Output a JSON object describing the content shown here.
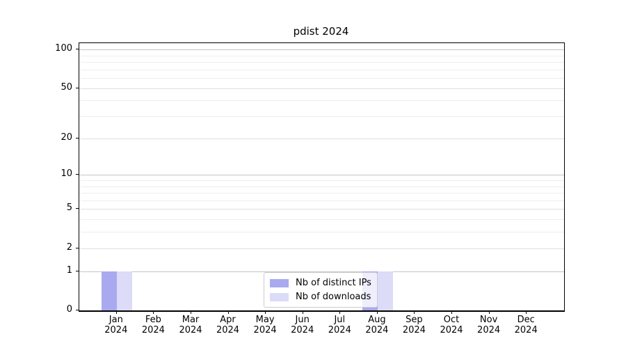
{
  "chart_data": {
    "type": "bar",
    "title": "pdist 2024",
    "categories": [
      "Jan 2024",
      "Feb 2024",
      "Mar 2024",
      "Apr 2024",
      "May 2024",
      "Jun 2024",
      "Jul 2024",
      "Aug 2024",
      "Sep 2024",
      "Oct 2024",
      "Nov 2024",
      "Dec 2024"
    ],
    "series": [
      {
        "name": "Nb of distinct IPs",
        "color": "#a9a9f0",
        "values": [
          1,
          0,
          0,
          0,
          0,
          0,
          0,
          1,
          0,
          0,
          0,
          0
        ]
      },
      {
        "name": "Nb of downloads",
        "color": "#dcdcf8",
        "values": [
          1,
          0,
          0,
          0,
          0,
          0,
          0,
          1,
          0,
          0,
          0,
          0
        ]
      }
    ],
    "yscale": "log1p",
    "ylim": [
      0,
      112
    ],
    "y_major_ticks": [
      0,
      1,
      2,
      5,
      10,
      20,
      50,
      100
    ],
    "y_minor_gridlines": [
      3,
      4,
      6,
      7,
      8,
      9,
      30,
      40,
      60,
      70,
      80,
      90
    ],
    "grid": true,
    "legend_position": "lower center",
    "colors": {
      "decade_gridline": "#c5c5c5",
      "labeled_gridline": "#dfdfdf",
      "minor_gridline": "#eeeeee",
      "spine": "#000000"
    }
  }
}
